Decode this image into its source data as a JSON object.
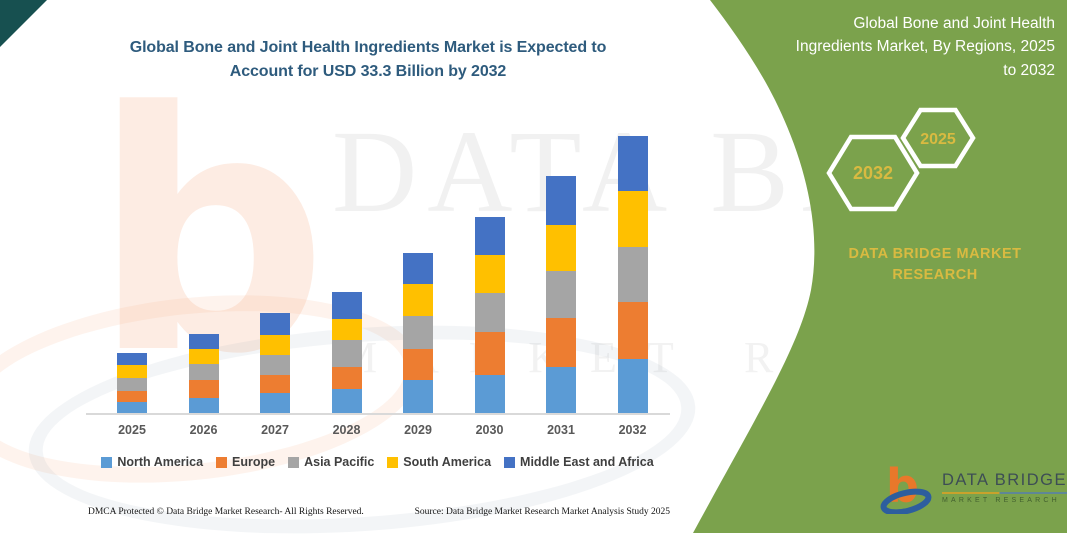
{
  "header": {
    "title_line1": "Global Bone and Joint Health Ingredients Market is Expected to",
    "title_line2": "Account for USD 33.3 Billion by 2032"
  },
  "side_panel": {
    "heading_line1": "Global Bone and Joint Health",
    "heading_line2": "Ingredients Market, By Regions, 2025",
    "heading_line3": "to 2032",
    "hexagons": [
      {
        "label": "2032"
      },
      {
        "label": "2025"
      }
    ],
    "brand_line1": "DATA BRIDGE MARKET",
    "brand_line2": "RESEARCH",
    "colors": {
      "panel_green": "#7ba24c",
      "gold_text": "#d9ba41",
      "hex_stroke": "#ffffff"
    }
  },
  "chart_data": {
    "type": "bar",
    "stacked": true,
    "title": "Global Bone and Joint Health Ingredients Market, By Regions, 2025 to 2032",
    "unit": "USD Billion",
    "categories": [
      "2025",
      "2026",
      "2027",
      "2028",
      "2029",
      "2030",
      "2031",
      "2032"
    ],
    "series": [
      {
        "name": "North America",
        "color": "#5B9BD5",
        "values": [
          1.4,
          1.9,
          2.5,
          3.0,
          4.1,
          4.7,
          5.6,
          6.6
        ]
      },
      {
        "name": "Europe",
        "color": "#ED7D31",
        "values": [
          1.3,
          2.2,
          2.2,
          2.6,
          3.7,
          5.2,
          5.9,
          6.8
        ]
      },
      {
        "name": "Asia Pacific",
        "color": "#A5A5A5",
        "values": [
          1.5,
          1.9,
          2.4,
          3.2,
          3.9,
          4.7,
          5.6,
          6.6
        ]
      },
      {
        "name": "South America",
        "color": "#FFC000",
        "values": [
          1.6,
          1.8,
          2.4,
          2.5,
          3.8,
          4.6,
          5.5,
          6.7
        ]
      },
      {
        "name": "Middle East and Africa",
        "color": "#4472C4",
        "values": [
          1.4,
          1.8,
          2.6,
          3.2,
          3.7,
          4.5,
          5.9,
          6.6
        ]
      }
    ],
    "totals": [
      7.2,
      9.6,
      12.1,
      14.5,
      19.2,
      23.7,
      28.5,
      33.3
    ],
    "ylim": [
      0,
      35
    ],
    "grid": false,
    "y_axis_visible": false,
    "legend_position": "bottom"
  },
  "footer": {
    "left": "DMCA Protected © Data Bridge Market Research- All Rights Reserved.",
    "right": "Source: Data Bridge Market Research Market Analysis Study 2025"
  },
  "logo": {
    "name": "DATA BRIDGE",
    "subtitle": "MARKET RESEARCH"
  },
  "watermark": {
    "letter": "b",
    "text_line1": "DATA BRIDGE",
    "text_line2": "MARKET RESEARCH"
  }
}
